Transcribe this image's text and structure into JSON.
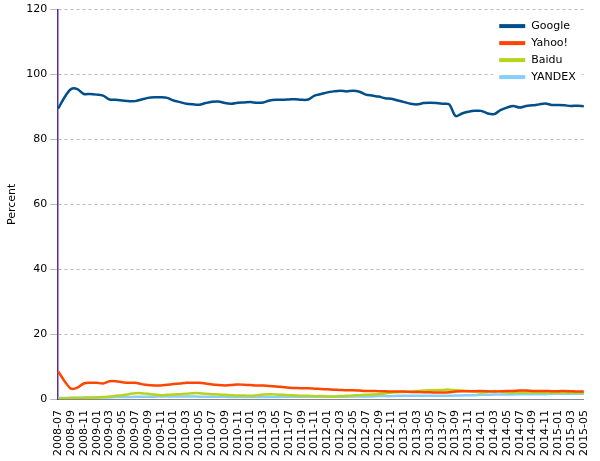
{
  "chart_data": {
    "type": "line",
    "y_label": "Percent",
    "categories": [
      "2008-07",
      null,
      "2008-09",
      null,
      "2008-11",
      null,
      "2009-01",
      null,
      "2009-03",
      null,
      "2009-05",
      null,
      "2009-07",
      null,
      "2009-09",
      null,
      "2009-11",
      null,
      "2010-01",
      null,
      "2010-03",
      null,
      "2010-05",
      null,
      "2010-07",
      null,
      "2010-09",
      null,
      "2010-11",
      null,
      "2011-01",
      null,
      "2011-03",
      null,
      "2011-05",
      null,
      "2011-07",
      null,
      "2011-09",
      null,
      "2011-11",
      null,
      "2012-01",
      null,
      "2012-03",
      null,
      "2012-05",
      null,
      "2012-07",
      null,
      "2012-09",
      null,
      "2012-11",
      null,
      "2013-01",
      null,
      "2013-03",
      null,
      "2013-05",
      null,
      "2013-07",
      null,
      "2013-09",
      null,
      "2013-11",
      null,
      "2014-01",
      null,
      "2014-03",
      null,
      "2014-05",
      null,
      "2014-07",
      null,
      "2014-09",
      null,
      "2014-11",
      null,
      "2015-01",
      null,
      "2015-03",
      null,
      "2015-05"
    ],
    "series": [
      {
        "name": "Google",
        "color": "#004f8a",
        "values": [
          89.5,
          93,
          95.5,
          95.5,
          94,
          94,
          93.8,
          93.5,
          92.3,
          92.2,
          92,
          91.8,
          91.8,
          92.3,
          92.8,
          93,
          93,
          92.8,
          92,
          91.5,
          91,
          90.8,
          90.7,
          91.2,
          91.6,
          91.7,
          91.2,
          91,
          91.3,
          91.4,
          91.5,
          91.3,
          91.4,
          92,
          92.2,
          92.2,
          92.3,
          92.4,
          92.2,
          92.3,
          93.5,
          94,
          94.5,
          94.8,
          95,
          94.8,
          95,
          94.7,
          93.8,
          93.5,
          93.2,
          92.7,
          92.5,
          92,
          91.5,
          91,
          90.8,
          91.2,
          91.3,
          91.2,
          91,
          90.8,
          87.2,
          88,
          88.5,
          88.8,
          88.8,
          88,
          87.8,
          89,
          89.8,
          90.3,
          89.8,
          90.3,
          90.5,
          90.8,
          91.1,
          90.6,
          90.6,
          90.5,
          90.3,
          90.4,
          90.2
        ]
      },
      {
        "name": "Yahoo!",
        "color": "#ff4500",
        "values": [
          8.5,
          5.5,
          3.2,
          3.5,
          4.8,
          5,
          5,
          4.8,
          5.5,
          5.5,
          5.2,
          5,
          5,
          4.6,
          4.3,
          4.2,
          4.2,
          4.4,
          4.6,
          4.8,
          5,
          5,
          5,
          4.8,
          4.5,
          4.3,
          4.2,
          4.3,
          4.5,
          4.4,
          4.3,
          4.2,
          4.2,
          4,
          3.9,
          3.7,
          3.5,
          3.4,
          3.3,
          3.3,
          3.2,
          3.1,
          3,
          2.9,
          2.8,
          2.7,
          2.7,
          2.6,
          2.5,
          2.5,
          2.4,
          2.4,
          2.3,
          2.3,
          2.3,
          2.2,
          2.2,
          2.1,
          2.1,
          2,
          2,
          2.1,
          2.3,
          2.4,
          2.4,
          2.4,
          2.5,
          2.4,
          2.3,
          2.4,
          2.5,
          2.5,
          2.6,
          2.6,
          2.5,
          2.5,
          2.5,
          2.4,
          2.4,
          2.5,
          2.4,
          2.3,
          2.3
        ]
      },
      {
        "name": "Baidu",
        "color": "#b5d41a",
        "values": [
          0.2,
          0.2,
          0.3,
          0.3,
          0.4,
          0.4,
          0.5,
          0.6,
          0.8,
          1,
          1.2,
          1.5,
          1.8,
          1.8,
          1.6,
          1.4,
          1.2,
          1.3,
          1.4,
          1.5,
          1.6,
          1.8,
          1.8,
          1.6,
          1.5,
          1.4,
          1.3,
          1.2,
          1.1,
          1.1,
          1,
          1.2,
          1.4,
          1.5,
          1.4,
          1.3,
          1.2,
          1.1,
          1,
          1,
          0.9,
          0.9,
          0.8,
          0.8,
          0.9,
          1,
          1.1,
          1.2,
          1.3,
          1.4,
          1.5,
          1.7,
          2,
          2.1,
          2.2,
          2.3,
          2.5,
          2.6,
          2.7,
          2.7,
          2.8,
          2.9,
          2.7,
          2.6,
          2.5,
          2.3,
          2,
          2.2,
          2.5,
          2.3,
          2.1,
          2,
          2,
          2,
          2.1,
          2,
          2,
          2,
          2,
          2.1,
          2,
          2,
          1.9
        ]
      },
      {
        "name": "YANDEX",
        "color": "#87cefa",
        "values": [
          0.3,
          0.3,
          0.4,
          0.4,
          0.4,
          0.5,
          0.5,
          0.5,
          0.5,
          0.6,
          0.6,
          0.6,
          0.7,
          0.7,
          0.7,
          0.7,
          0.8,
          0.8,
          0.8,
          0.8,
          0.8,
          0.8,
          0.7,
          0.7,
          0.7,
          0.7,
          0.7,
          0.6,
          0.6,
          0.6,
          0.6,
          0.6,
          0.6,
          0.6,
          0.6,
          0.7,
          0.7,
          0.7,
          0.7,
          0.7,
          0.7,
          0.7,
          0.7,
          0.7,
          0.7,
          0.7,
          0.8,
          0.8,
          0.8,
          0.8,
          0.9,
          0.9,
          0.9,
          1,
          1,
          1,
          1,
          1,
          1,
          1,
          1,
          1,
          1.1,
          1.1,
          1.2,
          1.2,
          1.3,
          1.3,
          1.4,
          1.4,
          1.4,
          1.4,
          1.5,
          1.5,
          1.5,
          1.5,
          1.5,
          1.6,
          1.6,
          1.6,
          1.6,
          1.6,
          1.6
        ]
      }
    ],
    "ylim": [
      0,
      120
    ],
    "yticks": [
      0,
      20,
      40,
      60,
      80,
      100,
      120
    ],
    "grid": true,
    "legend": "top-right"
  }
}
